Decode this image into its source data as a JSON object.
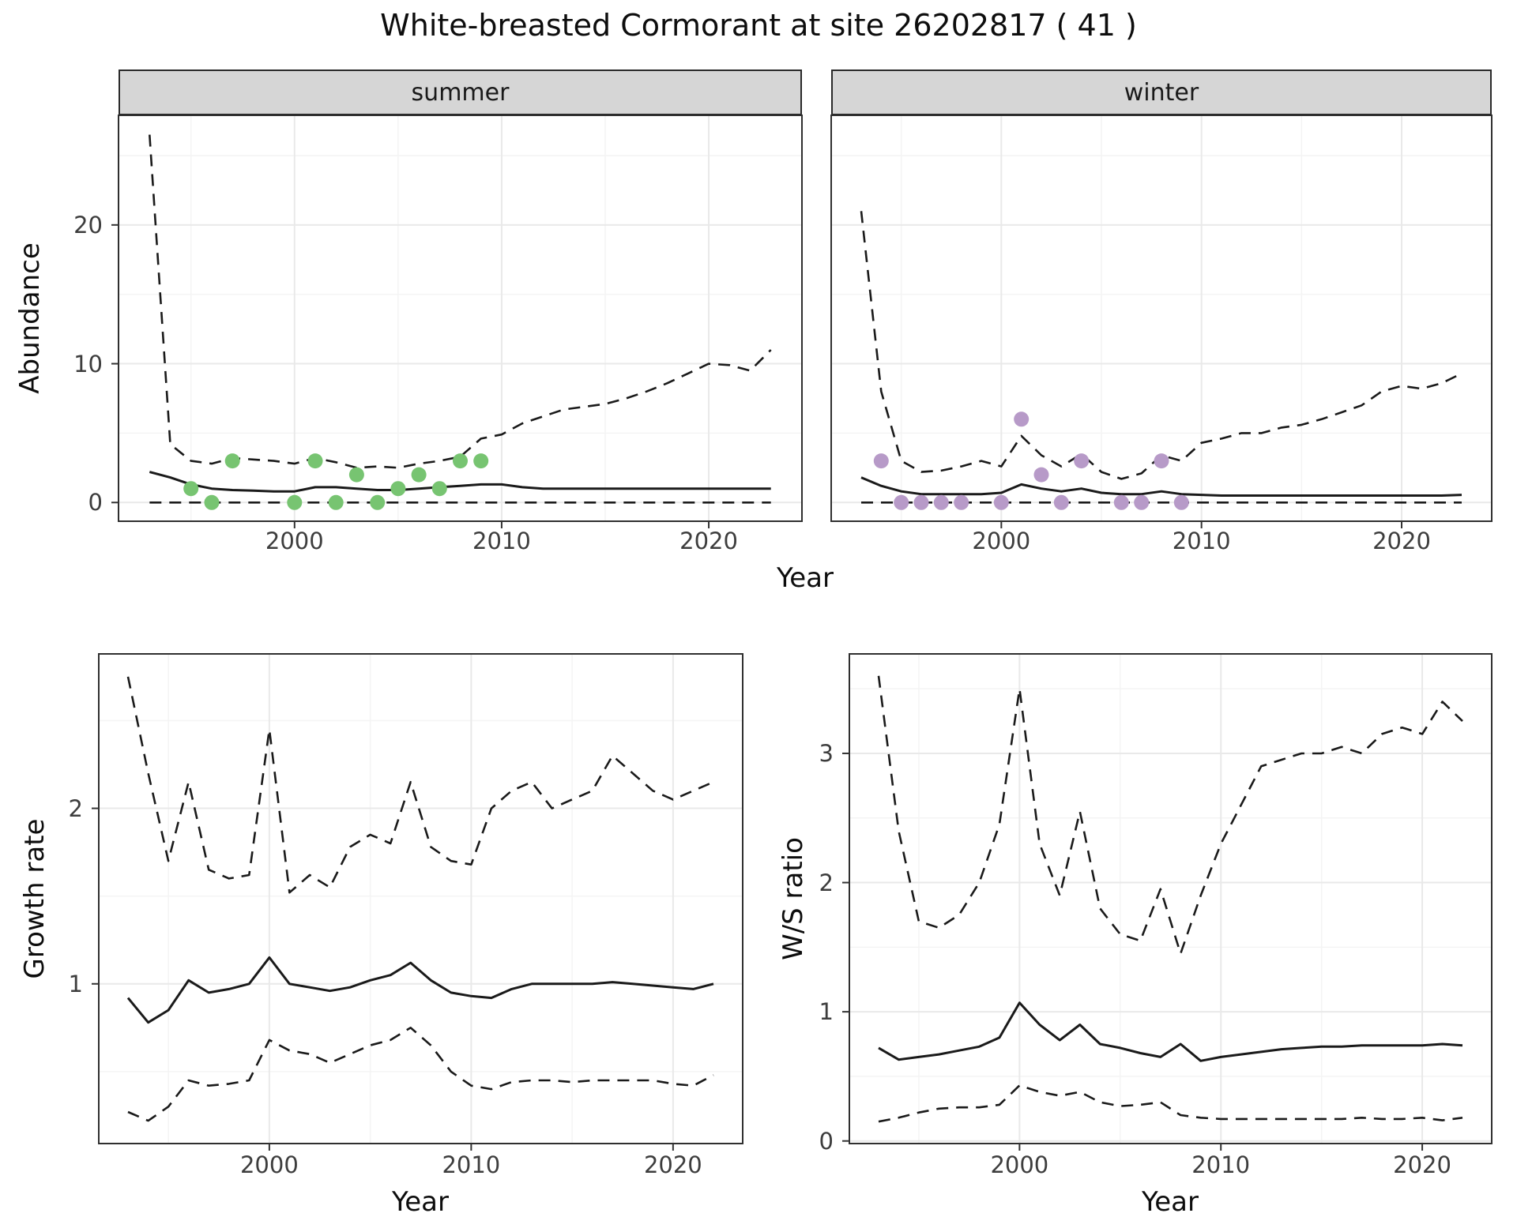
{
  "title": "White-breasted Cormorant at site 26202817 ( 41 )",
  "colors": {
    "summer_points": "#77c471",
    "winter_points": "#b79ac8",
    "line": "#1a1a1a",
    "strip_bg": "#d6d6d6",
    "grid_major": "#e9e9e9",
    "grid_minor": "#f4f4f4",
    "panel_border": "#2f2f2f",
    "tick_mark": "#333333"
  },
  "top_figure": {
    "y_axis_label": "Abundance",
    "x_axis_label": "Year",
    "facets": [
      {
        "label": "summer"
      },
      {
        "label": "winter"
      }
    ]
  },
  "bottom_left": {
    "y_axis_label": "Growth rate",
    "x_axis_label": "Year"
  },
  "bottom_right": {
    "y_axis_label": "W/S ratio",
    "x_axis_label": "Year"
  },
  "chart_data": [
    {
      "panel_id": "abundance-summer",
      "type": "line",
      "facet": "summer",
      "xlabel": "Year",
      "ylabel": "Abundance",
      "xlim": [
        1991.5,
        2024.5
      ],
      "ylim": [
        -1.35,
        27.9
      ],
      "xticks": [
        2000,
        2010,
        2020
      ],
      "yticks": [
        0,
        10,
        20
      ],
      "grid": true,
      "x": [
        1993,
        1994,
        1995,
        1996,
        1997,
        1998,
        1999,
        2000,
        2001,
        2002,
        2003,
        2004,
        2005,
        2006,
        2007,
        2008,
        2009,
        2010,
        2011,
        2012,
        2013,
        2014,
        2015,
        2016,
        2017,
        2018,
        2019,
        2020,
        2021,
        2022,
        2023
      ],
      "series": [
        {
          "name": "upper-ci",
          "style": "dashed",
          "values": [
            26.5,
            4.2,
            3.0,
            2.8,
            3.2,
            3.1,
            3.0,
            2.8,
            3.2,
            2.9,
            2.5,
            2.6,
            2.5,
            2.8,
            3.0,
            3.3,
            4.6,
            4.9,
            5.7,
            6.2,
            6.7,
            6.9,
            7.1,
            7.5,
            8.0,
            8.6,
            9.3,
            10.0,
            9.9,
            9.5,
            11.0
          ]
        },
        {
          "name": "median",
          "style": "solid",
          "values": [
            2.2,
            1.8,
            1.3,
            1.0,
            0.9,
            0.85,
            0.8,
            0.8,
            1.1,
            1.1,
            1.0,
            0.9,
            0.9,
            1.0,
            1.1,
            1.2,
            1.3,
            1.3,
            1.1,
            1.0,
            1.0,
            1.0,
            1.0,
            1.0,
            1.0,
            1.0,
            1.0,
            1.0,
            1.0,
            1.0,
            1.0
          ]
        },
        {
          "name": "lower-ci",
          "style": "dashed",
          "values": [
            0,
            0,
            0,
            0,
            0,
            0,
            0,
            0,
            0,
            0,
            0,
            0,
            0,
            0,
            0,
            0,
            0,
            0,
            0,
            0,
            0,
            0,
            0,
            0,
            0,
            0,
            0,
            0,
            0,
            0,
            0
          ]
        }
      ],
      "points": {
        "name": "observed-abundance-summer",
        "color_key": "summer_points",
        "x": [
          1995,
          1996,
          1997,
          2000,
          2001,
          2002,
          2003,
          2004,
          2005,
          2006,
          2007,
          2008,
          2009
        ],
        "y": [
          1,
          0,
          3,
          0,
          3,
          0,
          2,
          0,
          1,
          2,
          1,
          3,
          3
        ]
      }
    },
    {
      "panel_id": "abundance-winter",
      "type": "line",
      "facet": "winter",
      "xlabel": "Year",
      "ylabel": "Abundance",
      "xlim": [
        1991.5,
        2024.5
      ],
      "ylim": [
        -1.35,
        27.9
      ],
      "xticks": [
        2000,
        2010,
        2020
      ],
      "yticks": [
        0,
        10,
        20
      ],
      "grid": true,
      "x": [
        1993,
        1994,
        1995,
        1996,
        1997,
        1998,
        1999,
        2000,
        2001,
        2002,
        2003,
        2004,
        2005,
        2006,
        2007,
        2008,
        2009,
        2010,
        2011,
        2012,
        2013,
        2014,
        2015,
        2016,
        2017,
        2018,
        2019,
        2020,
        2021,
        2022,
        2023
      ],
      "series": [
        {
          "name": "upper-ci",
          "style": "dashed",
          "values": [
            21.0,
            8.0,
            3.0,
            2.2,
            2.3,
            2.6,
            3.0,
            2.6,
            4.8,
            3.4,
            2.6,
            3.5,
            2.2,
            1.7,
            2.1,
            3.4,
            3.0,
            4.3,
            4.6,
            5.0,
            5.0,
            5.4,
            5.6,
            6.0,
            6.5,
            7.0,
            8.0,
            8.4,
            8.2,
            8.6,
            9.3
          ]
        },
        {
          "name": "median",
          "style": "solid",
          "values": [
            1.8,
            1.2,
            0.8,
            0.6,
            0.6,
            0.6,
            0.6,
            0.7,
            1.3,
            1.0,
            0.8,
            1.0,
            0.7,
            0.6,
            0.6,
            0.8,
            0.6,
            0.55,
            0.5,
            0.5,
            0.5,
            0.5,
            0.5,
            0.5,
            0.5,
            0.5,
            0.5,
            0.5,
            0.5,
            0.5,
            0.55
          ]
        },
        {
          "name": "lower-ci",
          "style": "dashed",
          "values": [
            0,
            0,
            0,
            0,
            0,
            0,
            0,
            0,
            0,
            0,
            0,
            0,
            0,
            0,
            0,
            0,
            0,
            0,
            0,
            0,
            0,
            0,
            0,
            0,
            0,
            0,
            0,
            0,
            0,
            0,
            0
          ]
        }
      ],
      "points": {
        "name": "observed-abundance-winter",
        "color_key": "winter_points",
        "x": [
          1994,
          1995,
          1996,
          1997,
          1998,
          2000,
          2001,
          2002,
          2003,
          2004,
          2006,
          2007,
          2008,
          2009
        ],
        "y": [
          3,
          0,
          0,
          0,
          0,
          0,
          6,
          2,
          0,
          3,
          0,
          0,
          3,
          0
        ]
      }
    },
    {
      "panel_id": "growth-rate",
      "type": "line",
      "facet": "",
      "xlabel": "Year",
      "ylabel": "Growth rate",
      "xlim": [
        1991.55,
        2023.45
      ],
      "ylim": [
        0.09,
        2.88
      ],
      "xticks": [
        2000,
        2010,
        2020
      ],
      "yticks": [
        1,
        2
      ],
      "grid": true,
      "x": [
        1993,
        1994,
        1995,
        1996,
        1997,
        1998,
        1999,
        2000,
        2001,
        2002,
        2003,
        2004,
        2005,
        2006,
        2007,
        2008,
        2009,
        2010,
        2011,
        2012,
        2013,
        2014,
        2015,
        2016,
        2017,
        2018,
        2019,
        2020,
        2021,
        2022
      ],
      "series": [
        {
          "name": "upper-ci",
          "style": "dashed",
          "values": [
            2.75,
            2.2,
            1.7,
            2.15,
            1.65,
            1.6,
            1.62,
            2.45,
            1.52,
            1.62,
            1.55,
            1.78,
            1.85,
            1.8,
            2.15,
            1.78,
            1.7,
            1.68,
            2.0,
            2.1,
            2.15,
            2.0,
            2.05,
            2.1,
            2.3,
            2.2,
            2.1,
            2.05,
            2.1,
            2.15
          ]
        },
        {
          "name": "median",
          "style": "solid",
          "values": [
            0.92,
            0.78,
            0.85,
            1.02,
            0.95,
            0.97,
            1.0,
            1.15,
            1.0,
            0.98,
            0.96,
            0.98,
            1.02,
            1.05,
            1.12,
            1.02,
            0.95,
            0.93,
            0.92,
            0.97,
            1.0,
            1.0,
            1.0,
            1.0,
            1.01,
            1.0,
            0.99,
            0.98,
            0.97,
            1.0
          ]
        },
        {
          "name": "lower-ci",
          "style": "dashed",
          "values": [
            0.27,
            0.22,
            0.3,
            0.45,
            0.42,
            0.43,
            0.45,
            0.68,
            0.62,
            0.6,
            0.55,
            0.6,
            0.65,
            0.68,
            0.75,
            0.65,
            0.5,
            0.42,
            0.4,
            0.44,
            0.45,
            0.45,
            0.44,
            0.45,
            0.45,
            0.45,
            0.45,
            0.43,
            0.42,
            0.48
          ]
        }
      ],
      "points": null
    },
    {
      "panel_id": "ws-ratio",
      "type": "line",
      "facet": "",
      "xlabel": "Year",
      "ylabel": "W/S ratio",
      "xlim": [
        1991.55,
        2023.45
      ],
      "ylim": [
        -0.02,
        3.77
      ],
      "xticks": [
        2000,
        2010,
        2020
      ],
      "yticks": [
        0,
        1,
        2,
        3
      ],
      "grid": true,
      "x": [
        1993,
        1994,
        1995,
        1996,
        1997,
        1998,
        1999,
        2000,
        2001,
        2002,
        2003,
        2004,
        2005,
        2006,
        2007,
        2008,
        2009,
        2010,
        2011,
        2012,
        2013,
        2014,
        2015,
        2016,
        2017,
        2018,
        2019,
        2020,
        2021,
        2022
      ],
      "series": [
        {
          "name": "upper-ci",
          "style": "dashed",
          "values": [
            3.6,
            2.4,
            1.7,
            1.65,
            1.75,
            2.0,
            2.45,
            3.5,
            2.3,
            1.9,
            2.55,
            1.8,
            1.6,
            1.55,
            1.95,
            1.45,
            1.9,
            2.3,
            2.6,
            2.9,
            2.95,
            3.0,
            3.0,
            3.05,
            3.0,
            3.15,
            3.2,
            3.15,
            3.4,
            3.25
          ]
        },
        {
          "name": "median",
          "style": "solid",
          "values": [
            0.72,
            0.63,
            0.65,
            0.67,
            0.7,
            0.73,
            0.8,
            1.07,
            0.9,
            0.78,
            0.9,
            0.75,
            0.72,
            0.68,
            0.65,
            0.75,
            0.62,
            0.65,
            0.67,
            0.69,
            0.71,
            0.72,
            0.73,
            0.73,
            0.74,
            0.74,
            0.74,
            0.74,
            0.75,
            0.74
          ]
        },
        {
          "name": "lower-ci",
          "style": "dashed",
          "values": [
            0.15,
            0.18,
            0.22,
            0.25,
            0.26,
            0.26,
            0.28,
            0.43,
            0.38,
            0.35,
            0.38,
            0.3,
            0.27,
            0.28,
            0.3,
            0.2,
            0.18,
            0.17,
            0.17,
            0.17,
            0.17,
            0.17,
            0.17,
            0.17,
            0.18,
            0.17,
            0.17,
            0.18,
            0.16,
            0.18
          ]
        }
      ],
      "points": null
    }
  ]
}
